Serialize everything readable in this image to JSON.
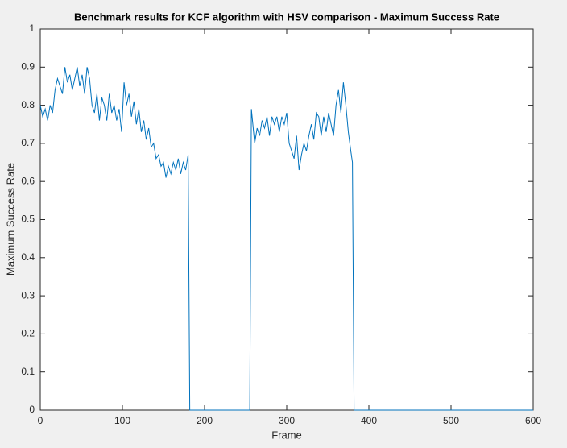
{
  "chart_data": {
    "type": "line",
    "title": "Benchmark results for KCF algorithm with HSV comparison - Maximum Success Rate",
    "x_label": "Frame",
    "y_label": "Maximum Success Rate",
    "xlim": [
      0,
      600
    ],
    "ylim": [
      0,
      1
    ],
    "xticks": [
      0,
      100,
      200,
      300,
      400,
      500,
      600
    ],
    "yticks": [
      0,
      0.1,
      0.2,
      0.3,
      0.4,
      0.5,
      0.6,
      0.7,
      0.8,
      0.9,
      1
    ],
    "grid": false,
    "series": [
      {
        "name": "Maximum Success Rate",
        "color": "#0072bd",
        "x": [
          0,
          3,
          6,
          9,
          12,
          15,
          18,
          21,
          24,
          27,
          30,
          33,
          36,
          39,
          42,
          45,
          48,
          51,
          54,
          57,
          60,
          63,
          66,
          69,
          72,
          75,
          78,
          81,
          84,
          87,
          90,
          93,
          96,
          99,
          102,
          105,
          108,
          111,
          114,
          117,
          120,
          123,
          126,
          129,
          132,
          135,
          138,
          141,
          144,
          147,
          150,
          153,
          156,
          159,
          162,
          165,
          168,
          171,
          174,
          177,
          180,
          182,
          255,
          257,
          261,
          264,
          267,
          270,
          273,
          276,
          279,
          282,
          285,
          288,
          291,
          294,
          297,
          300,
          303,
          306,
          309,
          312,
          315,
          318,
          321,
          324,
          327,
          330,
          333,
          336,
          339,
          342,
          345,
          348,
          351,
          354,
          357,
          360,
          363,
          366,
          369,
          372,
          375,
          378,
          380,
          382,
          600
        ],
        "values": [
          0.8,
          0.77,
          0.79,
          0.76,
          0.8,
          0.78,
          0.84,
          0.87,
          0.85,
          0.83,
          0.9,
          0.86,
          0.88,
          0.84,
          0.87,
          0.9,
          0.85,
          0.88,
          0.83,
          0.9,
          0.87,
          0.8,
          0.78,
          0.83,
          0.76,
          0.82,
          0.8,
          0.76,
          0.83,
          0.78,
          0.8,
          0.76,
          0.79,
          0.73,
          0.86,
          0.8,
          0.83,
          0.77,
          0.81,
          0.75,
          0.79,
          0.73,
          0.76,
          0.71,
          0.74,
          0.69,
          0.7,
          0.66,
          0.67,
          0.64,
          0.65,
          0.61,
          0.64,
          0.62,
          0.65,
          0.63,
          0.66,
          0.62,
          0.65,
          0.63,
          0.67,
          0,
          0,
          0.79,
          0.7,
          0.74,
          0.72,
          0.76,
          0.74,
          0.77,
          0.72,
          0.77,
          0.75,
          0.77,
          0.73,
          0.77,
          0.75,
          0.78,
          0.7,
          0.68,
          0.66,
          0.72,
          0.63,
          0.67,
          0.7,
          0.68,
          0.72,
          0.75,
          0.71,
          0.78,
          0.77,
          0.72,
          0.77,
          0.73,
          0.78,
          0.75,
          0.72,
          0.8,
          0.84,
          0.78,
          0.86,
          0.8,
          0.73,
          0.68,
          0.65,
          0,
          0
        ]
      }
    ]
  }
}
